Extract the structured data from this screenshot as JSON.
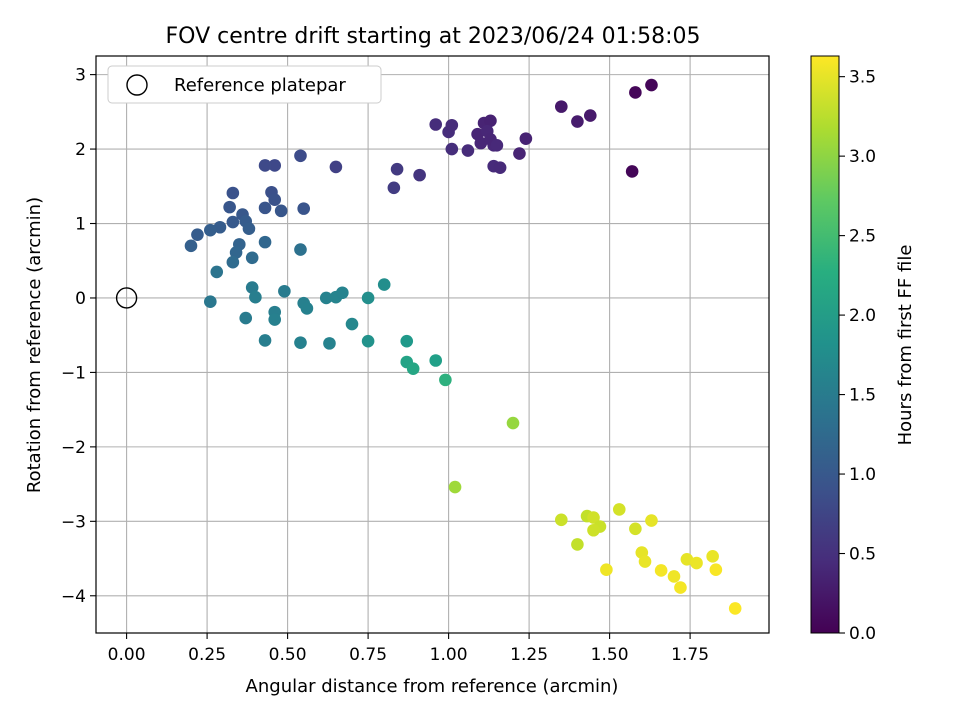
{
  "chart_data": {
    "type": "scatter",
    "title": "FOV centre drift starting at 2023/06/24 01:58:05",
    "xlabel": "Angular distance from reference (arcmin)",
    "ylabel": "Rotation from reference (arcmin)",
    "xlim": [
      -0.095,
      1.995
    ],
    "ylim": [
      -4.5,
      3.25
    ],
    "xticks": [
      0.0,
      0.25,
      0.5,
      0.75,
      1.0,
      1.25,
      1.5,
      1.75
    ],
    "xtick_labels": [
      "0.00",
      "0.25",
      "0.50",
      "0.75",
      "1.00",
      "1.25",
      "1.50",
      "1.75"
    ],
    "yticks": [
      -4,
      -3,
      -2,
      -1,
      0,
      1,
      2,
      3
    ],
    "ytick_labels": [
      "−4",
      "−3",
      "−2",
      "−1",
      "0",
      "1",
      "2",
      "3"
    ],
    "grid": true,
    "legend": {
      "position": "top-left",
      "entries": [
        {
          "label": "Reference platepar",
          "marker": "open-circle"
        }
      ]
    },
    "reference_point": {
      "x": 0,
      "y": 0
    },
    "colorbar": {
      "label": "Hours from first FF file",
      "colormap": "viridis",
      "range": [
        0.0,
        3.63
      ],
      "ticks": [
        0.0,
        0.5,
        1.0,
        1.5,
        2.0,
        2.5,
        3.0,
        3.5
      ],
      "tick_labels": [
        "0.0",
        "0.5",
        "1.0",
        "1.5",
        "2.0",
        "2.5",
        "3.0",
        "3.5"
      ]
    },
    "series": [
      {
        "points": [
          {
            "x": 1.57,
            "y": 1.7,
            "c": 0.05
          },
          {
            "x": 1.58,
            "y": 2.76,
            "c": 0.06
          },
          {
            "x": 1.63,
            "y": 2.86,
            "c": 0.04
          },
          {
            "x": 1.35,
            "y": 2.57,
            "c": 0.25
          },
          {
            "x": 1.4,
            "y": 2.37,
            "c": 0.28
          },
          {
            "x": 1.44,
            "y": 2.45,
            "c": 0.26
          },
          {
            "x": 1.24,
            "y": 2.14,
            "c": 0.35
          },
          {
            "x": 1.22,
            "y": 1.94,
            "c": 0.36
          },
          {
            "x": 1.1,
            "y": 2.08,
            "c": 0.38
          },
          {
            "x": 1.11,
            "y": 2.35,
            "c": 0.36
          },
          {
            "x": 1.13,
            "y": 2.38,
            "c": 0.34
          },
          {
            "x": 1.09,
            "y": 2.2,
            "c": 0.37
          },
          {
            "x": 1.12,
            "y": 2.24,
            "c": 0.39
          },
          {
            "x": 1.14,
            "y": 2.05,
            "c": 0.4
          },
          {
            "x": 1.13,
            "y": 2.13,
            "c": 0.38
          },
          {
            "x": 1.15,
            "y": 2.05,
            "c": 0.42
          },
          {
            "x": 1.14,
            "y": 1.77,
            "c": 0.44
          },
          {
            "x": 1.16,
            "y": 1.75,
            "c": 0.43
          },
          {
            "x": 1.06,
            "y": 1.98,
            "c": 0.45
          },
          {
            "x": 1.01,
            "y": 2.0,
            "c": 0.48
          },
          {
            "x": 1.0,
            "y": 2.23,
            "c": 0.47
          },
          {
            "x": 1.01,
            "y": 2.32,
            "c": 0.46
          },
          {
            "x": 0.96,
            "y": 2.33,
            "c": 0.47
          },
          {
            "x": 0.91,
            "y": 1.65,
            "c": 0.55
          },
          {
            "x": 0.84,
            "y": 1.73,
            "c": 0.62
          },
          {
            "x": 0.83,
            "y": 1.48,
            "c": 0.65
          },
          {
            "x": 0.65,
            "y": 1.76,
            "c": 0.7
          },
          {
            "x": 0.54,
            "y": 1.91,
            "c": 0.85
          },
          {
            "x": 0.46,
            "y": 1.78,
            "c": 0.8
          },
          {
            "x": 0.43,
            "y": 1.78,
            "c": 0.82
          },
          {
            "x": 0.55,
            "y": 1.2,
            "c": 0.95
          },
          {
            "x": 0.48,
            "y": 1.17,
            "c": 0.98
          },
          {
            "x": 0.45,
            "y": 1.42,
            "c": 0.9
          },
          {
            "x": 0.46,
            "y": 1.32,
            "c": 0.92
          },
          {
            "x": 0.43,
            "y": 1.21,
            "c": 0.96
          },
          {
            "x": 0.33,
            "y": 1.41,
            "c": 0.93
          },
          {
            "x": 0.36,
            "y": 1.12,
            "c": 1.0
          },
          {
            "x": 0.32,
            "y": 1.22,
            "c": 0.98
          },
          {
            "x": 0.33,
            "y": 1.02,
            "c": 1.02
          },
          {
            "x": 0.37,
            "y": 1.03,
            "c": 1.05
          },
          {
            "x": 0.38,
            "y": 0.93,
            "c": 1.08
          },
          {
            "x": 0.29,
            "y": 0.95,
            "c": 1.05
          },
          {
            "x": 0.26,
            "y": 0.91,
            "c": 1.08
          },
          {
            "x": 0.22,
            "y": 0.85,
            "c": 1.06
          },
          {
            "x": 0.2,
            "y": 0.7,
            "c": 1.1
          },
          {
            "x": 0.35,
            "y": 0.72,
            "c": 1.15
          },
          {
            "x": 0.34,
            "y": 0.61,
            "c": 1.18
          },
          {
            "x": 0.33,
            "y": 0.48,
            "c": 1.25
          },
          {
            "x": 0.43,
            "y": 0.75,
            "c": 1.2
          },
          {
            "x": 0.39,
            "y": 0.54,
            "c": 1.25
          },
          {
            "x": 0.54,
            "y": 0.65,
            "c": 1.35
          },
          {
            "x": 0.28,
            "y": 0.35,
            "c": 1.4
          },
          {
            "x": 0.26,
            "y": -0.05,
            "c": 1.45
          },
          {
            "x": 0.39,
            "y": 0.14,
            "c": 1.5
          },
          {
            "x": 0.4,
            "y": 0.01,
            "c": 1.55
          },
          {
            "x": 0.49,
            "y": 0.09,
            "c": 1.5
          },
          {
            "x": 0.37,
            "y": -0.27,
            "c": 1.5
          },
          {
            "x": 0.46,
            "y": -0.19,
            "c": 1.55
          },
          {
            "x": 0.46,
            "y": -0.29,
            "c": 1.58
          },
          {
            "x": 0.55,
            "y": -0.07,
            "c": 1.58
          },
          {
            "x": 0.56,
            "y": -0.14,
            "c": 1.6
          },
          {
            "x": 0.62,
            "y": 0.0,
            "c": 1.62
          },
          {
            "x": 0.65,
            "y": 0.01,
            "c": 1.64
          },
          {
            "x": 0.67,
            "y": 0.07,
            "c": 1.63
          },
          {
            "x": 0.43,
            "y": -0.57,
            "c": 1.55
          },
          {
            "x": 0.54,
            "y": -0.6,
            "c": 1.6
          },
          {
            "x": 0.63,
            "y": -0.61,
            "c": 1.62
          },
          {
            "x": 0.7,
            "y": -0.35,
            "c": 1.68
          },
          {
            "x": 0.75,
            "y": 0.0,
            "c": 1.8
          },
          {
            "x": 0.8,
            "y": 0.18,
            "c": 1.78
          },
          {
            "x": 0.75,
            "y": -0.58,
            "c": 1.85
          },
          {
            "x": 0.87,
            "y": -0.58,
            "c": 1.95
          },
          {
            "x": 0.87,
            "y": -0.86,
            "c": 2.1
          },
          {
            "x": 0.89,
            "y": -0.95,
            "c": 2.15
          },
          {
            "x": 0.96,
            "y": -0.84,
            "c": 2.05
          },
          {
            "x": 0.99,
            "y": -1.1,
            "c": 2.3
          },
          {
            "x": 1.2,
            "y": -1.68,
            "c": 3.05
          },
          {
            "x": 1.02,
            "y": -2.54,
            "c": 3.1
          },
          {
            "x": 1.35,
            "y": -2.98,
            "c": 3.35
          },
          {
            "x": 1.43,
            "y": -2.93,
            "c": 3.3
          },
          {
            "x": 1.45,
            "y": -2.95,
            "c": 3.38
          },
          {
            "x": 1.47,
            "y": -3.07,
            "c": 3.34
          },
          {
            "x": 1.45,
            "y": -3.12,
            "c": 3.36
          },
          {
            "x": 1.4,
            "y": -3.31,
            "c": 3.3
          },
          {
            "x": 1.53,
            "y": -2.84,
            "c": 3.4
          },
          {
            "x": 1.58,
            "y": -3.1,
            "c": 3.4
          },
          {
            "x": 1.49,
            "y": -3.65,
            "c": 3.55
          },
          {
            "x": 1.6,
            "y": -3.42,
            "c": 3.5
          },
          {
            "x": 1.61,
            "y": -3.54,
            "c": 3.52
          },
          {
            "x": 1.63,
            "y": -2.99,
            "c": 3.5
          },
          {
            "x": 1.66,
            "y": -3.66,
            "c": 3.58
          },
          {
            "x": 1.7,
            "y": -3.74,
            "c": 3.55
          },
          {
            "x": 1.72,
            "y": -3.89,
            "c": 3.58
          },
          {
            "x": 1.74,
            "y": -3.51,
            "c": 3.5
          },
          {
            "x": 1.77,
            "y": -3.56,
            "c": 3.53
          },
          {
            "x": 1.82,
            "y": -3.47,
            "c": 3.52
          },
          {
            "x": 1.83,
            "y": -3.65,
            "c": 3.6
          },
          {
            "x": 1.89,
            "y": -4.17,
            "c": 3.62
          }
        ]
      }
    ]
  }
}
